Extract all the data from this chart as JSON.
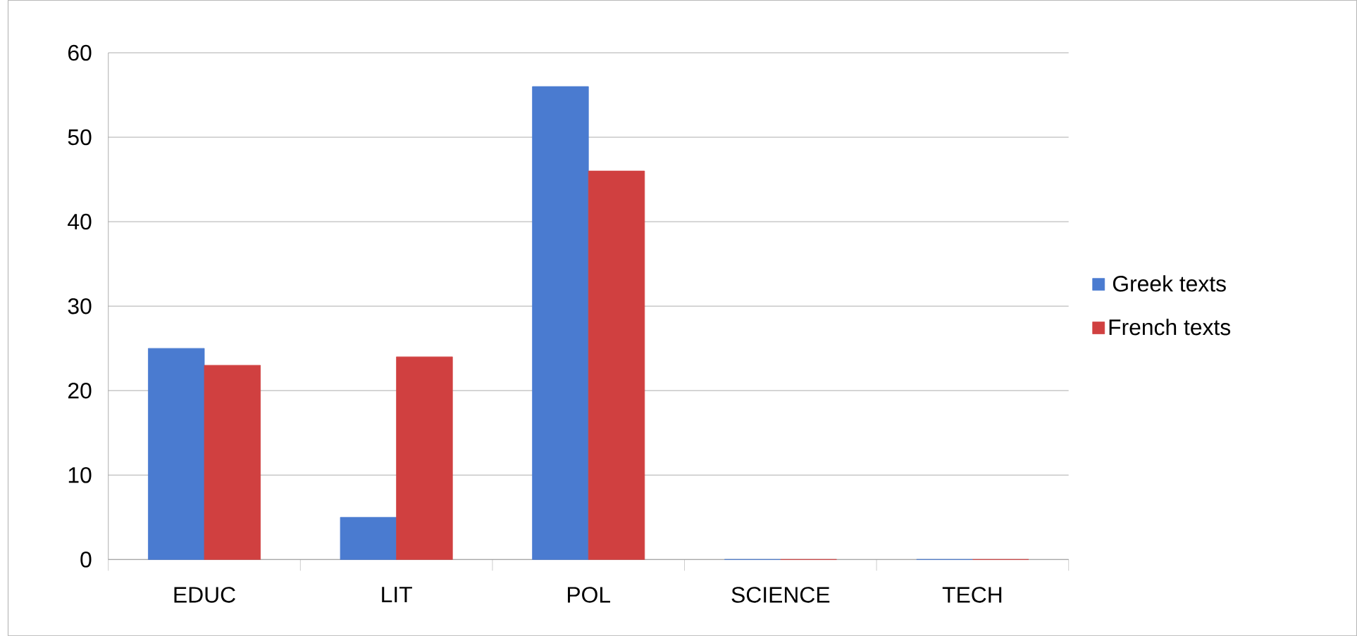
{
  "chart_data": {
    "type": "bar",
    "categories": [
      "EDUC",
      "LIT",
      "POL",
      "SCIENCE",
      "TECH"
    ],
    "series": [
      {
        "name": "Greek texts",
        "color": "#4a7bd0",
        "values": [
          25,
          5,
          56,
          0,
          0
        ]
      },
      {
        "name": "French texts",
        "color": "#d04040",
        "values": [
          23,
          24,
          46,
          0,
          0
        ]
      }
    ],
    "ylim": [
      0,
      60
    ],
    "yticks": [
      0,
      10,
      20,
      30,
      40,
      50,
      60
    ],
    "grid": "y",
    "legend": "right"
  }
}
